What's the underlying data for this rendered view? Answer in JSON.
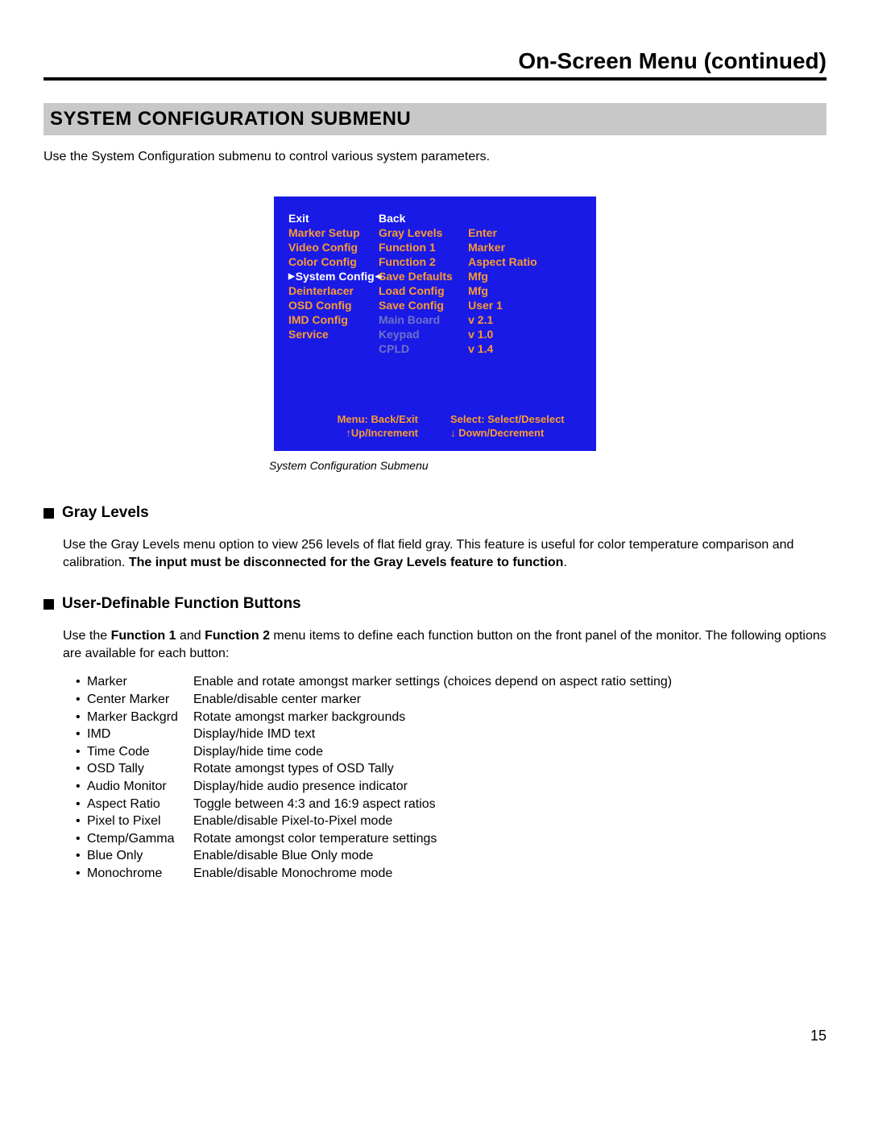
{
  "header": {
    "title": "On-Screen Menu (continued)"
  },
  "section": {
    "title": "SYSTEM CONFIGURATION SUBMENU"
  },
  "intro": "Use the System Configuration submenu to control various system parameters.",
  "menu": {
    "col1": [
      {
        "label": "Exit",
        "style": "white"
      },
      {
        "label": "Marker Setup",
        "style": "normal"
      },
      {
        "label": "Video Config",
        "style": "normal"
      },
      {
        "label": "Color Config",
        "style": "normal"
      },
      {
        "label": "System Config",
        "style": "selected"
      },
      {
        "label": "Deinterlacer",
        "style": "normal"
      },
      {
        "label": "OSD Config",
        "style": "normal"
      },
      {
        "label": "IMD Config",
        "style": "normal"
      },
      {
        "label": "Service",
        "style": "normal"
      }
    ],
    "col2": [
      {
        "label": "Back",
        "style": "white"
      },
      {
        "label": "Gray Levels",
        "style": "normal"
      },
      {
        "label": "Function 1",
        "style": "normal"
      },
      {
        "label": "Function 2",
        "style": "normal"
      },
      {
        "label": "Save Defaults",
        "style": "normal"
      },
      {
        "label": "Load Config",
        "style": "normal"
      },
      {
        "label": "Save Config",
        "style": "normal"
      },
      {
        "label": "Main Board",
        "style": "dim"
      },
      {
        "label": "Keypad",
        "style": "dim"
      },
      {
        "label": "CPLD",
        "style": "dim"
      }
    ],
    "col3": [
      {
        "label": "",
        "style": "blank"
      },
      {
        "label": "Enter",
        "style": "normal"
      },
      {
        "label": "Marker",
        "style": "normal"
      },
      {
        "label": "Aspect Ratio",
        "style": "normal"
      },
      {
        "label": "Mfg",
        "style": "normal"
      },
      {
        "label": "Mfg",
        "style": "normal"
      },
      {
        "label": "User 1",
        "style": "normal"
      },
      {
        "label": "v 2.1",
        "style": "normal"
      },
      {
        "label": "v 1.0",
        "style": "normal"
      },
      {
        "label": "v 1.4",
        "style": "normal"
      }
    ],
    "footer": {
      "left_line1": "Menu: Back/Exit",
      "left_line2": "↑Up/Increment",
      "right_line1": "Select: Select/Deselect",
      "right_line2": "↓ Down/Decrement"
    }
  },
  "caption": "System Configuration Submenu",
  "gray_levels": {
    "heading": "Gray Levels",
    "p1_prefix": "Use the Gray Levels menu option to view 256 levels of flat field gray. This feature is useful for color temperature comparison and calibration. ",
    "p1_bold": "The input must be disconnected for the Gray Levels feature to function",
    "p1_suffix": "."
  },
  "udf": {
    "heading": "User-Definable Function Buttons",
    "p1_a": "Use the ",
    "p1_b1": "Function 1",
    "p1_c": " and ",
    "p1_b2": "Function 2",
    "p1_d": " menu items to define each function button on the front panel of the monitor. The following options are available for each button:",
    "options": [
      {
        "name": "Marker",
        "desc": "Enable and rotate amongst marker settings (choices depend on aspect ratio setting)"
      },
      {
        "name": "Center Marker",
        "desc": "Enable/disable center marker"
      },
      {
        "name": "Marker Backgrd",
        "desc": "Rotate amongst marker backgrounds"
      },
      {
        "name": "IMD",
        "desc": "Display/hide IMD text"
      },
      {
        "name": "Time Code",
        "desc": "Display/hide time code"
      },
      {
        "name": "OSD Tally",
        "desc": "Rotate amongst types of OSD Tally"
      },
      {
        "name": "Audio Monitor",
        "desc": "Display/hide audio presence indicator"
      },
      {
        "name": "Aspect Ratio",
        "desc": "Toggle between 4:3 and 16:9 aspect ratios"
      },
      {
        "name": "Pixel to Pixel",
        "desc": "Enable/disable Pixel-to-Pixel mode"
      },
      {
        "name": "Ctemp/Gamma",
        "desc": "Rotate amongst color temperature settings"
      },
      {
        "name": "Blue Only",
        "desc": "Enable/disable Blue Only mode"
      },
      {
        "name": "Monochrome",
        "desc": "Enable/disable Monochrome mode"
      }
    ]
  },
  "page_number": "15"
}
